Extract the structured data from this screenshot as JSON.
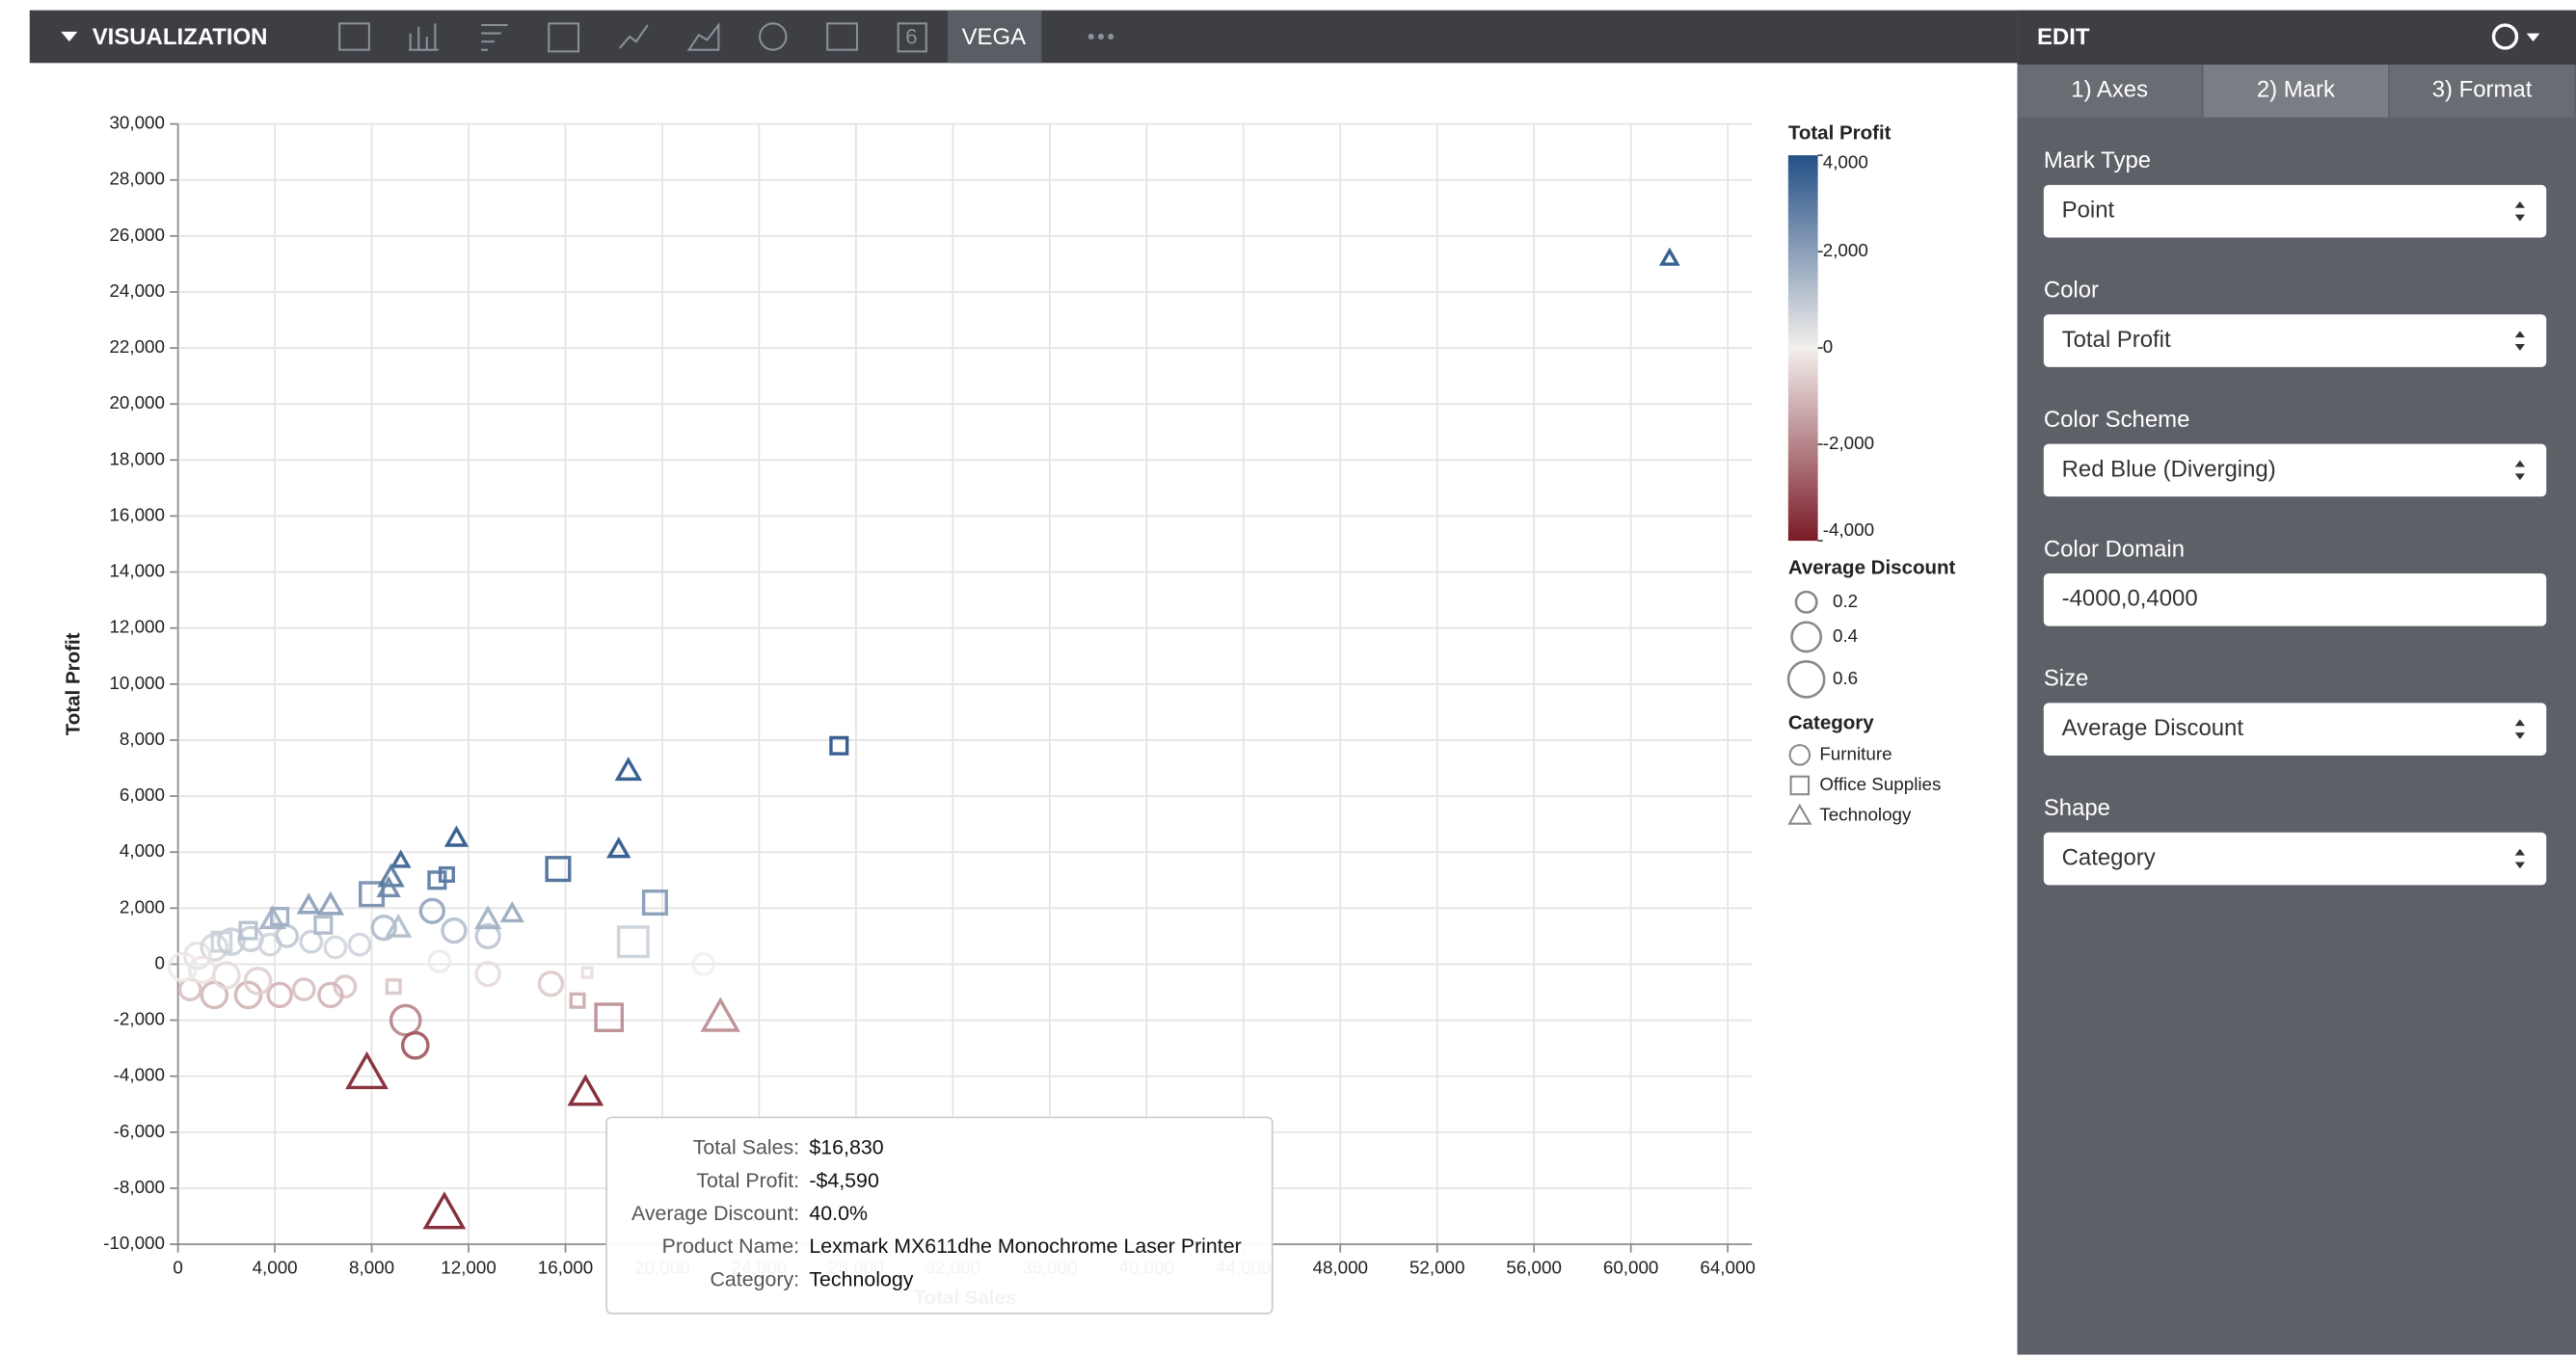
{
  "toolbar": {
    "title": "VISUALIZATION",
    "tab_count": "6",
    "active_tab": "VEGA"
  },
  "edit_panel": {
    "title": "EDIT",
    "tabs": [
      "1) Axes",
      "2) Mark",
      "3) Format"
    ],
    "fields": [
      {
        "label": "Mark Type",
        "value": "Point"
      },
      {
        "label": "Color",
        "value": "Total Profit"
      },
      {
        "label": "Color Scheme",
        "value": "Red Blue (Diverging)"
      },
      {
        "label": "Color Domain",
        "value": "-4000,0,4000"
      },
      {
        "label": "Size",
        "value": "Average Discount"
      },
      {
        "label": "Shape",
        "value": "Category"
      }
    ]
  },
  "tooltip": {
    "rows": [
      {
        "label": "Total Sales:",
        "value": "$16,830"
      },
      {
        "label": "Total Profit:",
        "value": "-$4,590"
      },
      {
        "label": "Average Discount:",
        "value": "40.0%"
      },
      {
        "label": "Product Name:",
        "value": "Lexmark MX611dhe Monochrome Laser Printer"
      },
      {
        "label": "Category:",
        "value": "Technology"
      }
    ]
  },
  "chart_data": {
    "type": "scatter",
    "x_label": "Total Sales",
    "y_label": "Total Profit",
    "xlim": [
      0,
      65000
    ],
    "ylim": [
      -10000,
      30000
    ],
    "xticks": [
      0,
      {
        "value": 4000,
        "label": "4,000"
      },
      {
        "value": 8000,
        "label": "8,000"
      },
      {
        "value": 12000,
        "label": "12,000"
      },
      {
        "value": 16000,
        "label": "16,000"
      },
      {
        "value": 20000,
        "label": "20,000"
      },
      {
        "value": 24000,
        "label": "24,000"
      },
      {
        "value": 28000,
        "label": "28,000"
      },
      {
        "value": 32000,
        "label": "32,000"
      },
      {
        "value": 36000,
        "label": "36,000"
      },
      {
        "value": 40000,
        "label": "40,000"
      },
      {
        "value": 44000,
        "label": "44,000"
      },
      {
        "value": 48000,
        "label": "48,000"
      },
      {
        "value": 52000,
        "label": "52,000"
      },
      {
        "value": 56000,
        "label": "56,000"
      },
      {
        "value": 60000,
        "label": "60,000"
      },
      {
        "value": 64000,
        "label": "64,000"
      }
    ],
    "yticks": [
      {
        "value": -10000,
        "label": "-10,000"
      },
      {
        "value": -8000,
        "label": "-8,000"
      },
      {
        "value": -6000,
        "label": "-6,000"
      },
      {
        "value": -4000,
        "label": "-4,000"
      },
      {
        "value": -2000,
        "label": "-2,000"
      },
      0,
      {
        "value": 2000,
        "label": "2,000"
      },
      {
        "value": 4000,
        "label": "4,000"
      },
      {
        "value": 6000,
        "label": "6,000"
      },
      {
        "value": 8000,
        "label": "8,000"
      },
      {
        "value": 10000,
        "label": "10,000"
      },
      {
        "value": 12000,
        "label": "12,000"
      },
      {
        "value": 14000,
        "label": "14,000"
      },
      {
        "value": 16000,
        "label": "16,000"
      },
      {
        "value": 18000,
        "label": "18,000"
      },
      {
        "value": 20000,
        "label": "20,000"
      },
      {
        "value": 22000,
        "label": "22,000"
      },
      {
        "value": 24000,
        "label": "24,000"
      },
      {
        "value": 26000,
        "label": "26,000"
      },
      {
        "value": 28000,
        "label": "28,000"
      },
      {
        "value": 30000,
        "label": "30,000"
      }
    ],
    "grid": true,
    "color_legend": {
      "title": "Total Profit",
      "ticks": [
        {
          "value": 4000,
          "label": "4,000"
        },
        {
          "value": 2000,
          "label": "2,000"
        },
        0,
        {
          "value": -2000,
          "label": "-2,000"
        },
        {
          "value": -4000,
          "label": "-4,000"
        }
      ]
    },
    "color_domain": [
      -4000,
      0,
      4000
    ],
    "color_scheme": [
      "#7a1a28",
      "#f2efec",
      "#245086"
    ],
    "size_legend": {
      "title": "Average Discount",
      "values": [
        0.2,
        0.4,
        0.6
      ]
    },
    "shape_legend_title": "Category",
    "series": [
      {
        "name": "Furniture",
        "shape": "circle",
        "x": [
          9400,
          9800,
          10500,
          11400,
          12800,
          12800,
          15400,
          10800,
          21700,
          6900,
          6300,
          5200,
          4200,
          2900,
          1500,
          500,
          800,
          1500,
          2200,
          3000,
          3800,
          4500,
          5500,
          6500,
          7500,
          1000,
          2000,
          3300,
          8500,
          200
        ],
        "values": [
          -2000,
          -2900,
          1900,
          1200,
          1000,
          -350,
          -700,
          100,
          0,
          -800,
          -1100,
          -900,
          -1100,
          -1100,
          -1100,
          -900,
          300,
          600,
          800,
          900,
          700,
          1000,
          800,
          600,
          700,
          -200,
          -400,
          -600,
          1300,
          -100
        ],
        "sizes": [
          0.4,
          0.3,
          0.25,
          0.25,
          0.25,
          0.25,
          0.25,
          0.2,
          0.2,
          0.2,
          0.25,
          0.2,
          0.25,
          0.3,
          0.3,
          0.2,
          0.3,
          0.3,
          0.3,
          0.25,
          0.2,
          0.2,
          0.2,
          0.2,
          0.2,
          0.3,
          0.3,
          0.3,
          0.25,
          0.35
        ]
      },
      {
        "name": "Office Supplies",
        "shape": "square",
        "x": [
          27300,
          15700,
          19700,
          18800,
          17800,
          16500,
          16900,
          11100,
          10700,
          8000,
          8900,
          4200,
          2900,
          1800,
          6000
        ],
        "values": [
          7800,
          3400,
          2200,
          800,
          -1900,
          -1300,
          -300,
          3200,
          3000,
          2500,
          -800,
          1700,
          1200,
          800,
          1400
        ],
        "sizes": [
          0.15,
          0.3,
          0.3,
          0.5,
          0.4,
          0.1,
          0.05,
          0.1,
          0.15,
          0.3,
          0.1,
          0.15,
          0.15,
          0.2,
          0.15
        ]
      },
      {
        "name": "Technology",
        "shape": "triangle",
        "x": [
          61600,
          18600,
          11500,
          18200,
          9200,
          8800,
          13800,
          12800,
          6300,
          5400,
          9100,
          7800,
          16830,
          11000,
          22400,
          3900,
          8700
        ],
        "values": [
          25200,
          6900,
          4500,
          4100,
          3700,
          3100,
          1800,
          1600,
          2100,
          2100,
          1300,
          -3900,
          -4590,
          -8900,
          -1900,
          1600,
          2700
        ],
        "sizes": [
          0.1,
          0.2,
          0.15,
          0.15,
          0.1,
          0.2,
          0.15,
          0.2,
          0.2,
          0.15,
          0.2,
          0.6,
          0.4,
          0.6,
          0.5,
          0.2,
          0.15
        ]
      }
    ]
  }
}
